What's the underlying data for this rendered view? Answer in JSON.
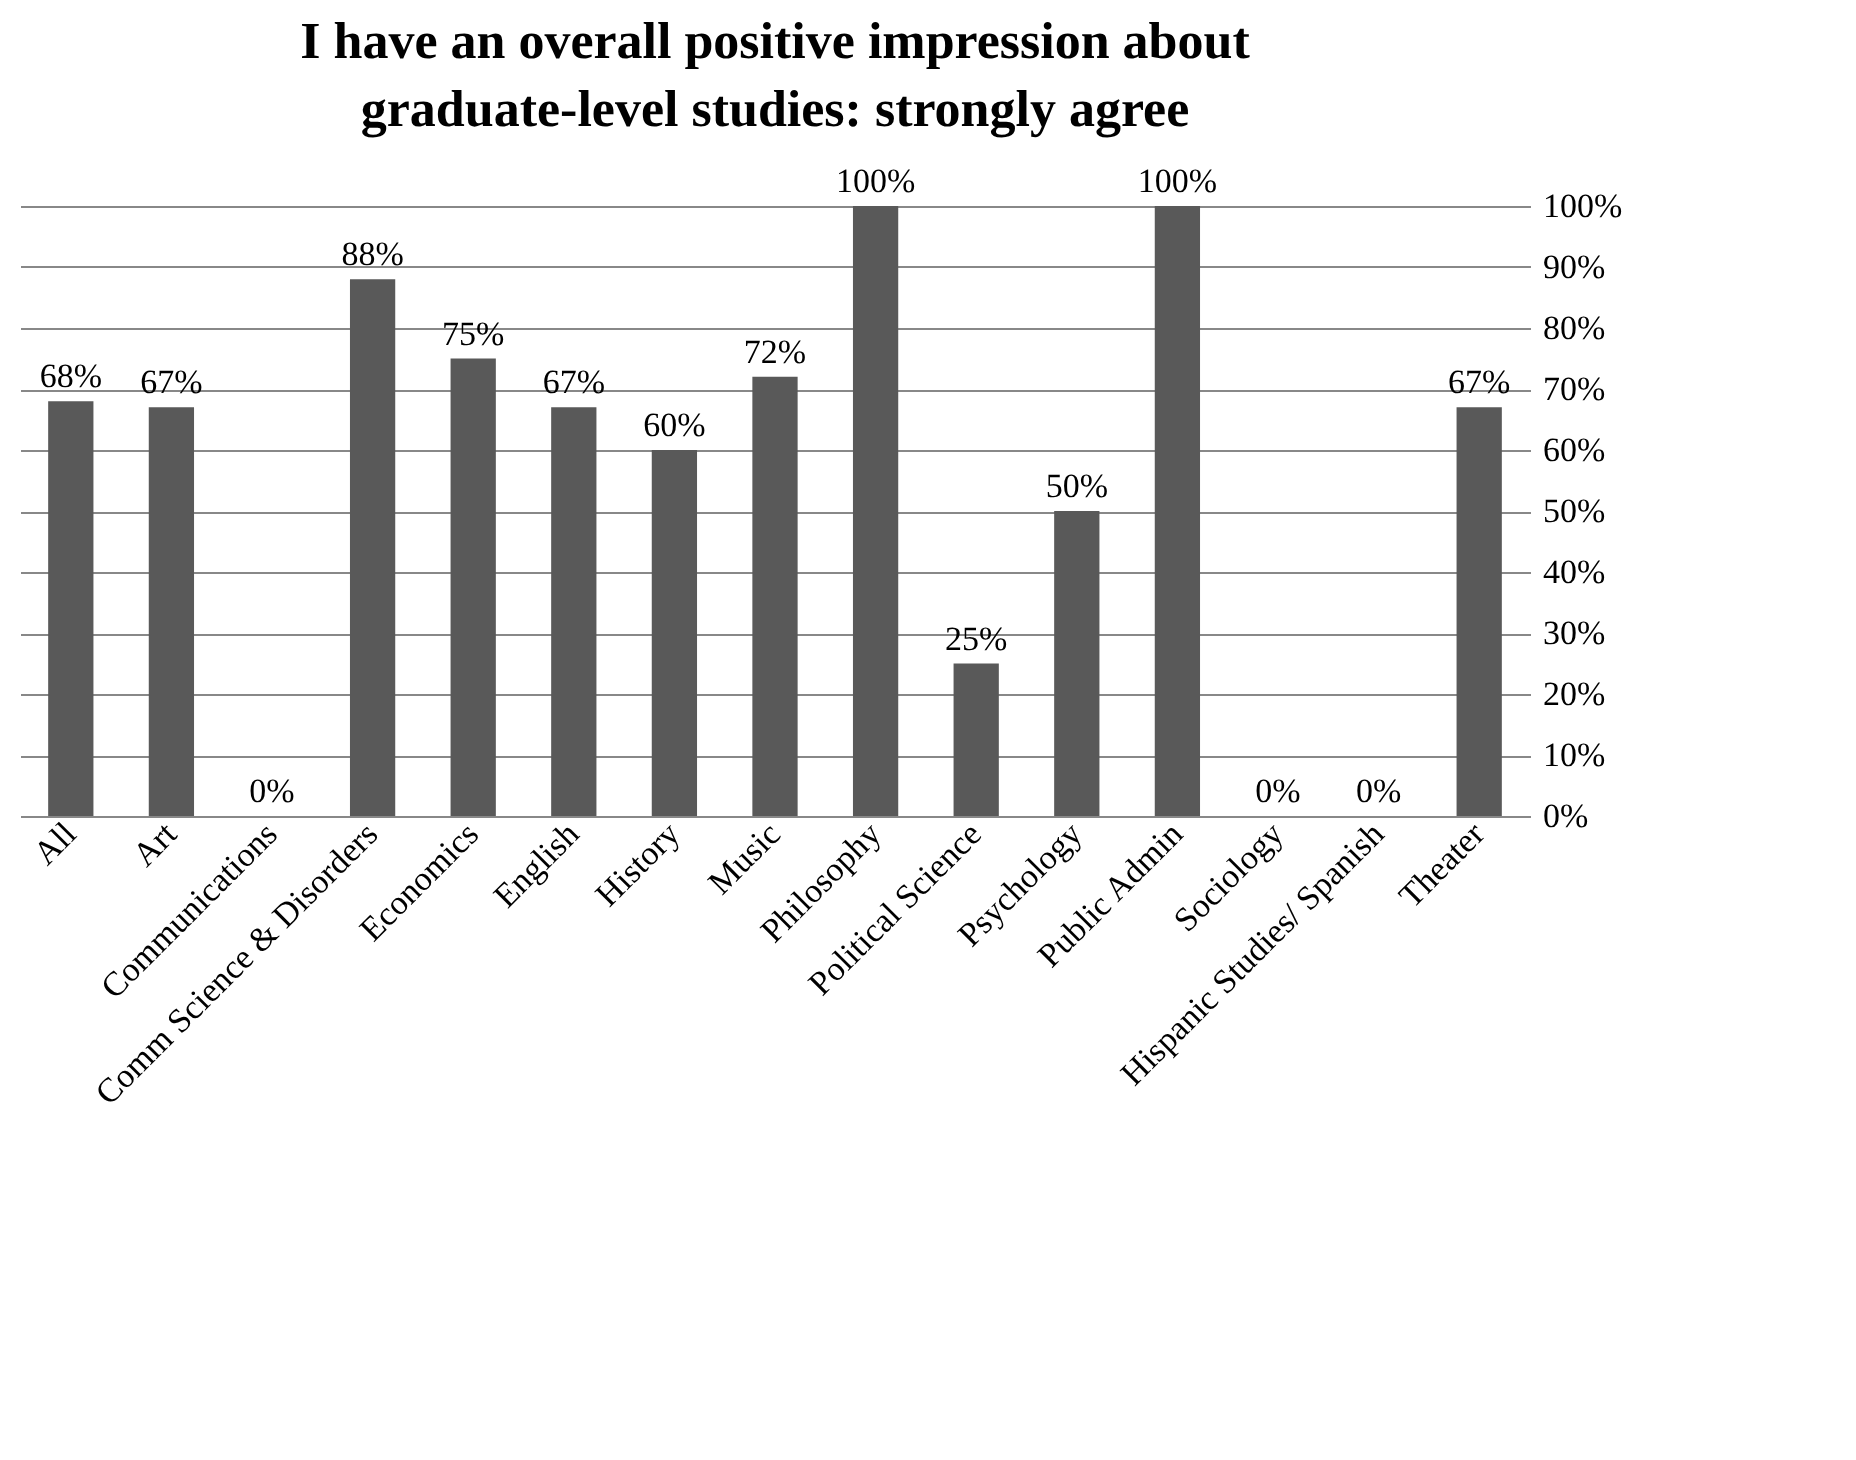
{
  "chart_data": {
    "type": "bar",
    "title": "I have an overall positive impression about graduate-level studies: strongly agree",
    "categories": [
      "All",
      "Art",
      "Communications",
      "Comm Science & Disorders",
      "Economics",
      "English",
      "History",
      "Music",
      "Philosophy",
      "Political Science",
      "Psychology",
      "Public Admin",
      "Sociology",
      "Hispanic Studies/ Spanish",
      "Theater"
    ],
    "values": [
      68,
      67,
      0,
      88,
      75,
      67,
      60,
      72,
      100,
      25,
      50,
      100,
      0,
      0,
      67
    ],
    "value_labels": [
      "68%",
      "67%",
      "0%",
      "88%",
      "75%",
      "67%",
      "60%",
      "72%",
      "100%",
      "25%",
      "50%",
      "100%",
      "0%",
      "0%",
      "67%"
    ],
    "color": "#595959",
    "ylim": [
      0,
      100
    ],
    "yticks": [
      {
        "value": 0,
        "label": "0%"
      },
      {
        "value": 10,
        "label": "10%"
      },
      {
        "value": 20,
        "label": "20%"
      },
      {
        "value": 30,
        "label": "30%"
      },
      {
        "value": 40,
        "label": "40%"
      },
      {
        "value": 50,
        "label": "50%"
      },
      {
        "value": 60,
        "label": "60%"
      },
      {
        "value": 70,
        "label": "70%"
      },
      {
        "value": 80,
        "label": "80%"
      },
      {
        "value": 90,
        "label": "90%"
      },
      {
        "value": 100,
        "label": "100%"
      }
    ],
    "grid": "y"
  }
}
